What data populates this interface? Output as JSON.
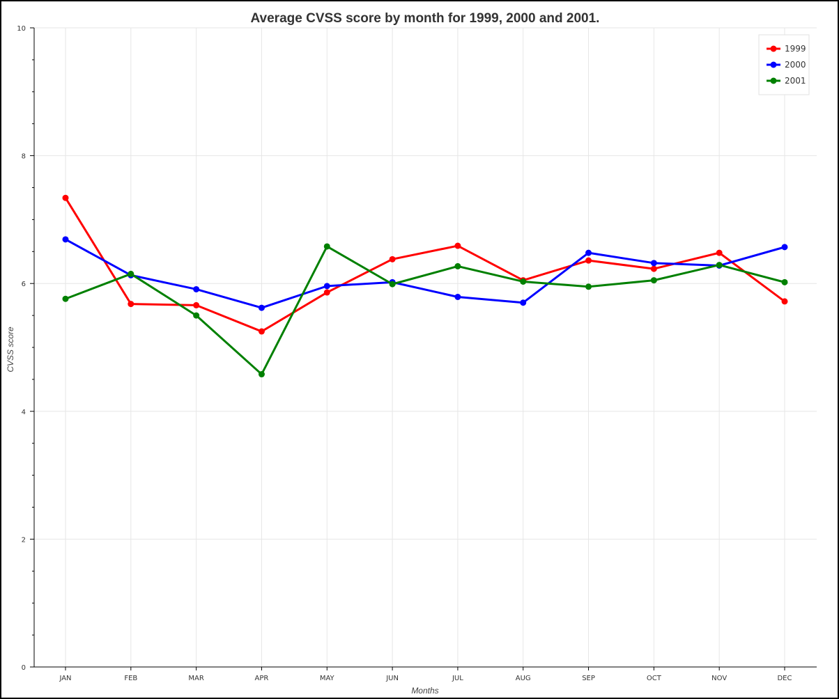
{
  "chart_data": {
    "type": "line",
    "title": "Average CVSS score by month for 1999, 2000 and 2001.",
    "xlabel": "Months",
    "ylabel": "CVSS score",
    "categories": [
      "JAN",
      "FEB",
      "MAR",
      "APR",
      "MAY",
      "JUN",
      "JUL",
      "AUG",
      "SEP",
      "OCT",
      "NOV",
      "DEC"
    ],
    "ylim": [
      0,
      10
    ],
    "yticks": [
      0,
      2,
      4,
      6,
      8,
      10
    ],
    "grid": true,
    "legend_position": "top-right",
    "series": [
      {
        "name": "1999",
        "color": "#ff0000",
        "values": [
          7.34,
          5.68,
          5.66,
          5.25,
          5.86,
          6.38,
          6.59,
          6.05,
          6.36,
          6.23,
          6.48,
          5.72
        ]
      },
      {
        "name": "2000",
        "color": "#0000ff",
        "values": [
          6.69,
          6.13,
          5.91,
          5.62,
          5.96,
          6.02,
          5.79,
          5.7,
          6.48,
          6.32,
          6.28,
          6.57
        ]
      },
      {
        "name": "2001",
        "color": "#008000",
        "values": [
          5.76,
          6.15,
          5.5,
          4.58,
          6.58,
          5.99,
          6.27,
          6.03,
          5.95,
          6.05,
          6.29,
          6.02
        ]
      }
    ]
  }
}
